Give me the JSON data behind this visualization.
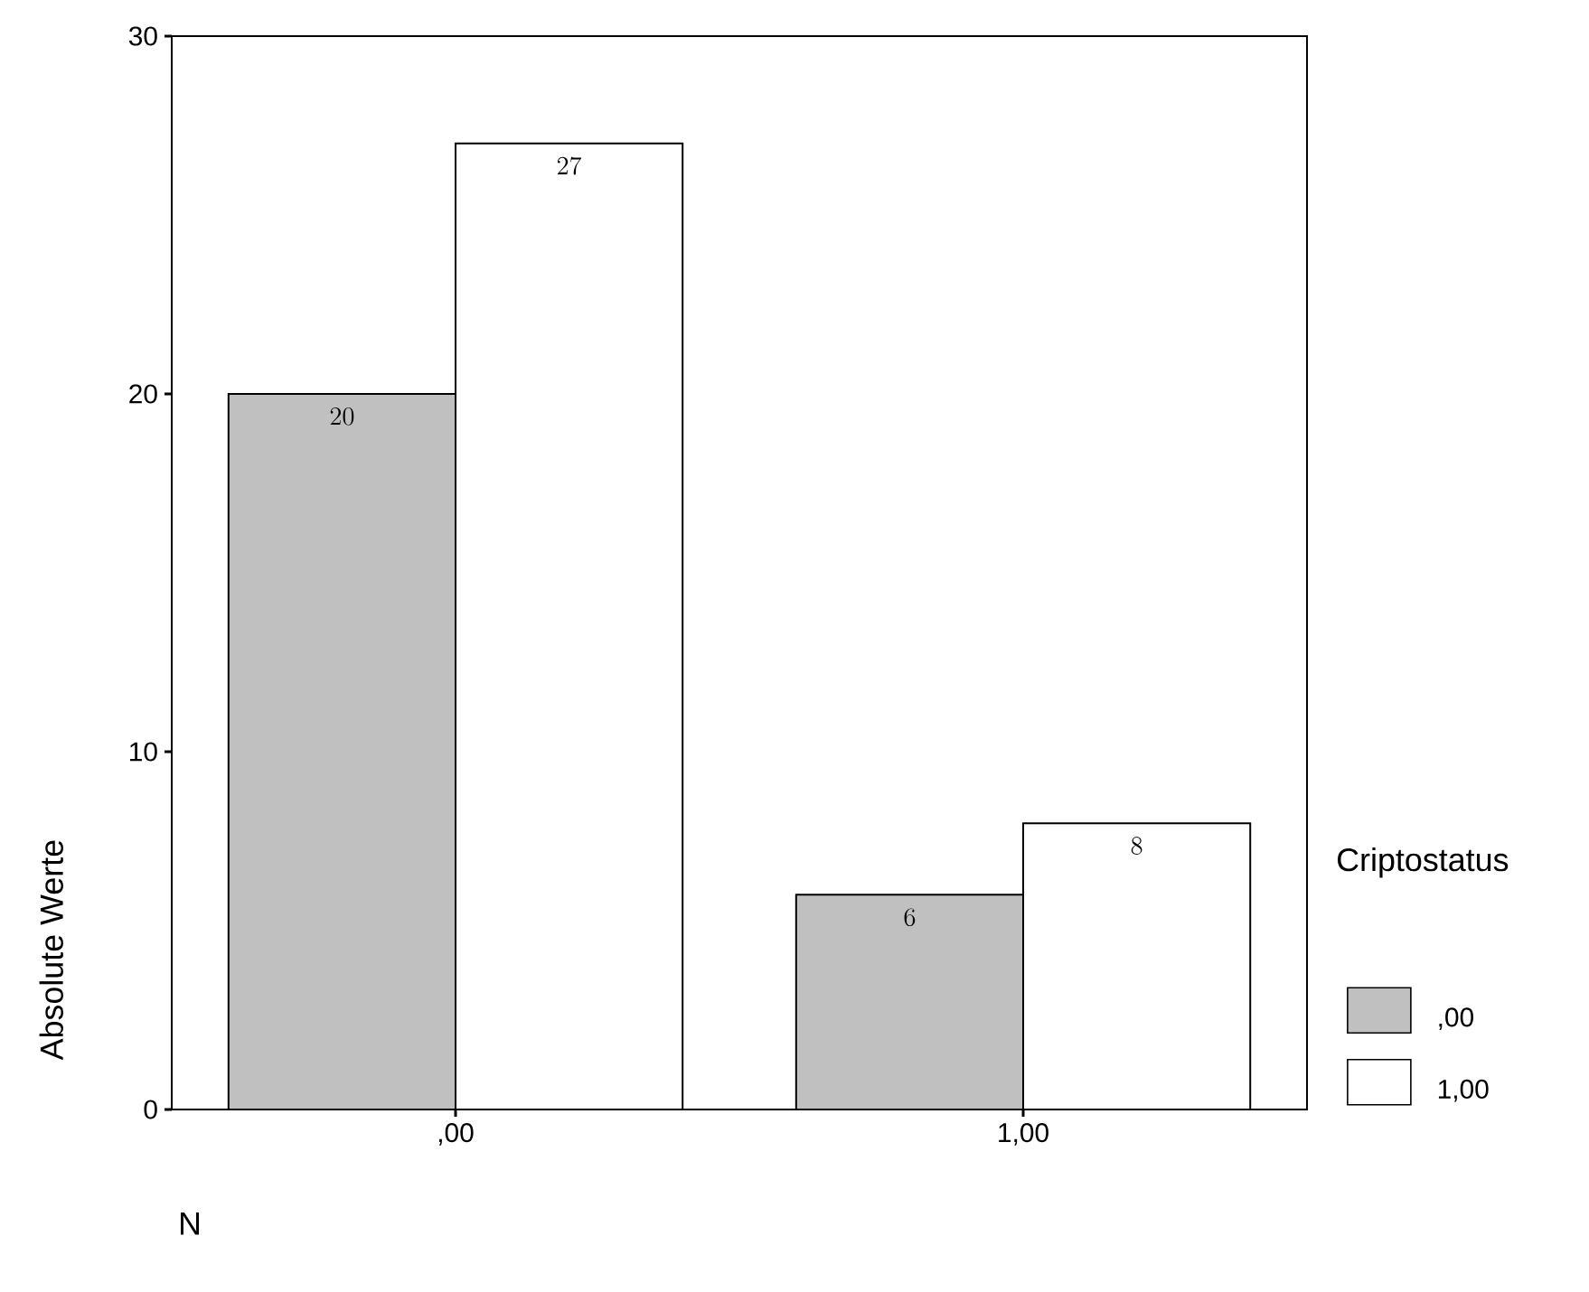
{
  "chart_data": {
    "type": "bar",
    "xlabel": "N",
    "ylabel": "Absolute Werte",
    "legend_title": "Criptostatus",
    "categories": [
      ",00",
      "1,00"
    ],
    "series": [
      {
        "name": ",00",
        "color": "#c0c0c0",
        "values": [
          20,
          6
        ]
      },
      {
        "name": "1,00",
        "color": "#ffffff",
        "values": [
          27,
          8
        ]
      }
    ],
    "ylim": [
      0,
      30
    ],
    "yticks": [
      0,
      10,
      20,
      30
    ],
    "data_labels": true,
    "legend": "right",
    "grid": false
  }
}
